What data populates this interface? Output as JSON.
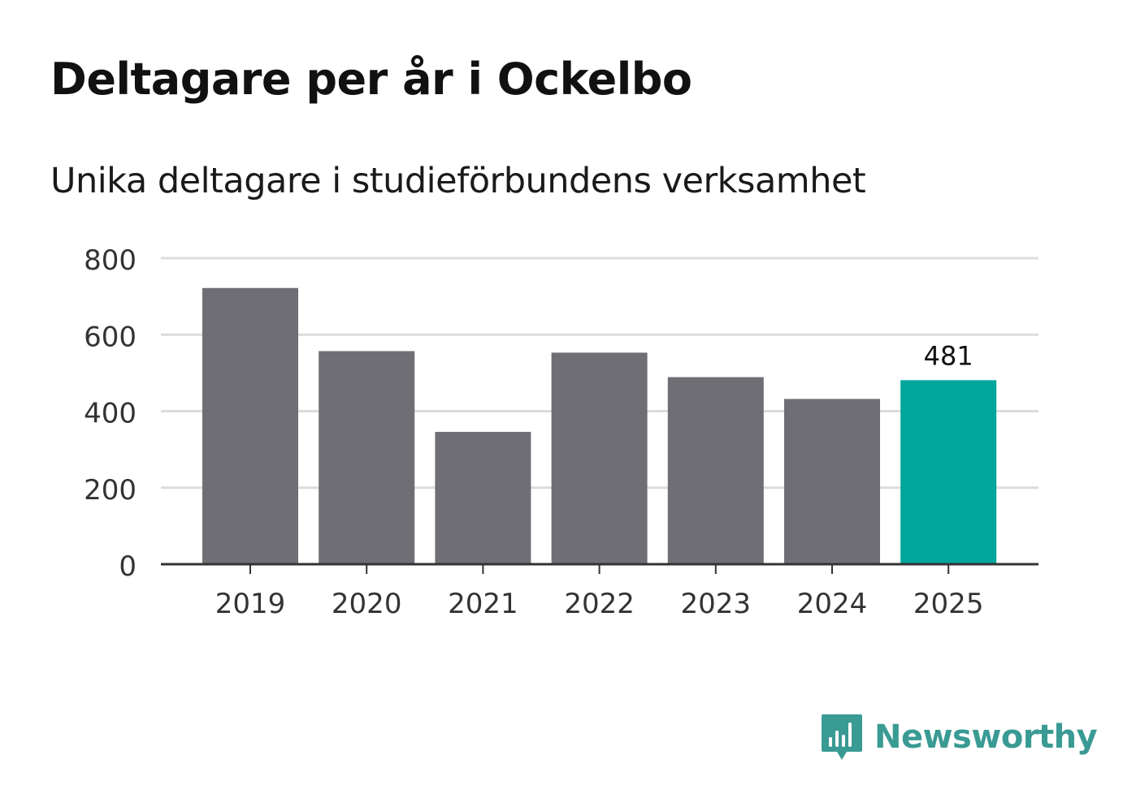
{
  "header": {
    "title": "Deltagare per år i Ockelbo",
    "subtitle": "Unika deltagare i studieförbundens verksamhet"
  },
  "brand": {
    "name": "Newsworthy",
    "icon": "newsworthy-logo-icon",
    "color": "#3a9a94"
  },
  "colors": {
    "bar": "#6f6e75",
    "highlight": "#00a59b",
    "grid": "#dcdcdc",
    "axis": "#333333",
    "tick_text": "#333333"
  },
  "chart_data": {
    "type": "bar",
    "title": "Deltagare per år i Ockelbo",
    "subtitle": "Unika deltagare i studieförbundens verksamhet",
    "categories": [
      "2019",
      "2020",
      "2021",
      "2022",
      "2023",
      "2024",
      "2025"
    ],
    "values": [
      722,
      557,
      346,
      553,
      489,
      432,
      481
    ],
    "highlight_index": 6,
    "data_labels": [
      {
        "index": 6,
        "text": "481"
      }
    ],
    "ylim": [
      0,
      800
    ],
    "yticks": [
      0,
      200,
      400,
      600,
      800
    ],
    "xlabel": "",
    "ylabel": "",
    "grid": true,
    "legend": "none"
  }
}
